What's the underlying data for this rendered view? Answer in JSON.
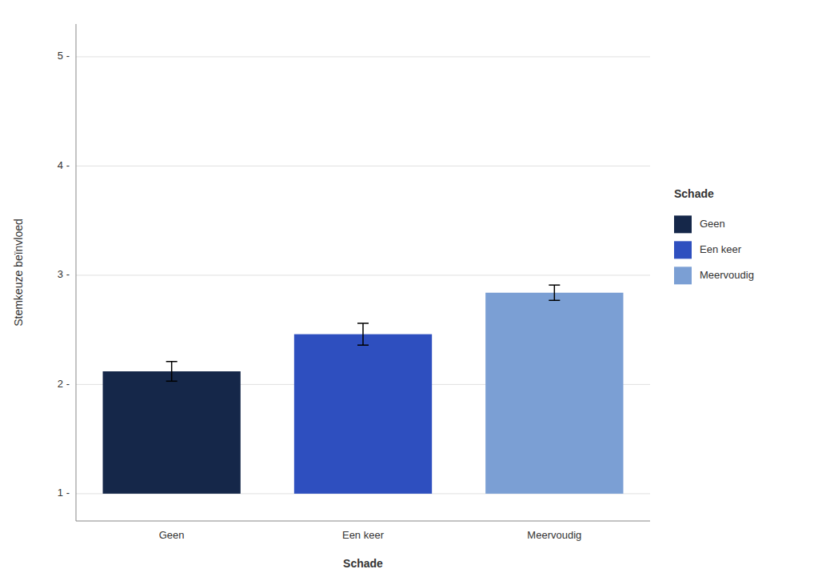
{
  "chart_data": {
    "type": "bar",
    "categories": [
      "Geen",
      "Een keer",
      "Meervoudig"
    ],
    "values": [
      2.12,
      2.46,
      2.84
    ],
    "errors": [
      0.09,
      0.1,
      0.07
    ],
    "colors": [
      "#152749",
      "#2E4FBF",
      "#7B9FD4"
    ],
    "baseline": 1.0,
    "xlabel": "Schade",
    "ylabel": "Stemkeuze beïnvloed",
    "legend_title": "Schade",
    "legend": "right",
    "grid": true,
    "ylim": [
      0.75,
      5.3
    ],
    "yticks": [
      {
        "value": 1,
        "label": "1 -"
      },
      {
        "value": 2,
        "label": "2 -"
      },
      {
        "value": 3,
        "label": "3 -"
      },
      {
        "value": 4,
        "label": "4 -"
      },
      {
        "value": 5,
        "label": "5 -"
      }
    ]
  }
}
